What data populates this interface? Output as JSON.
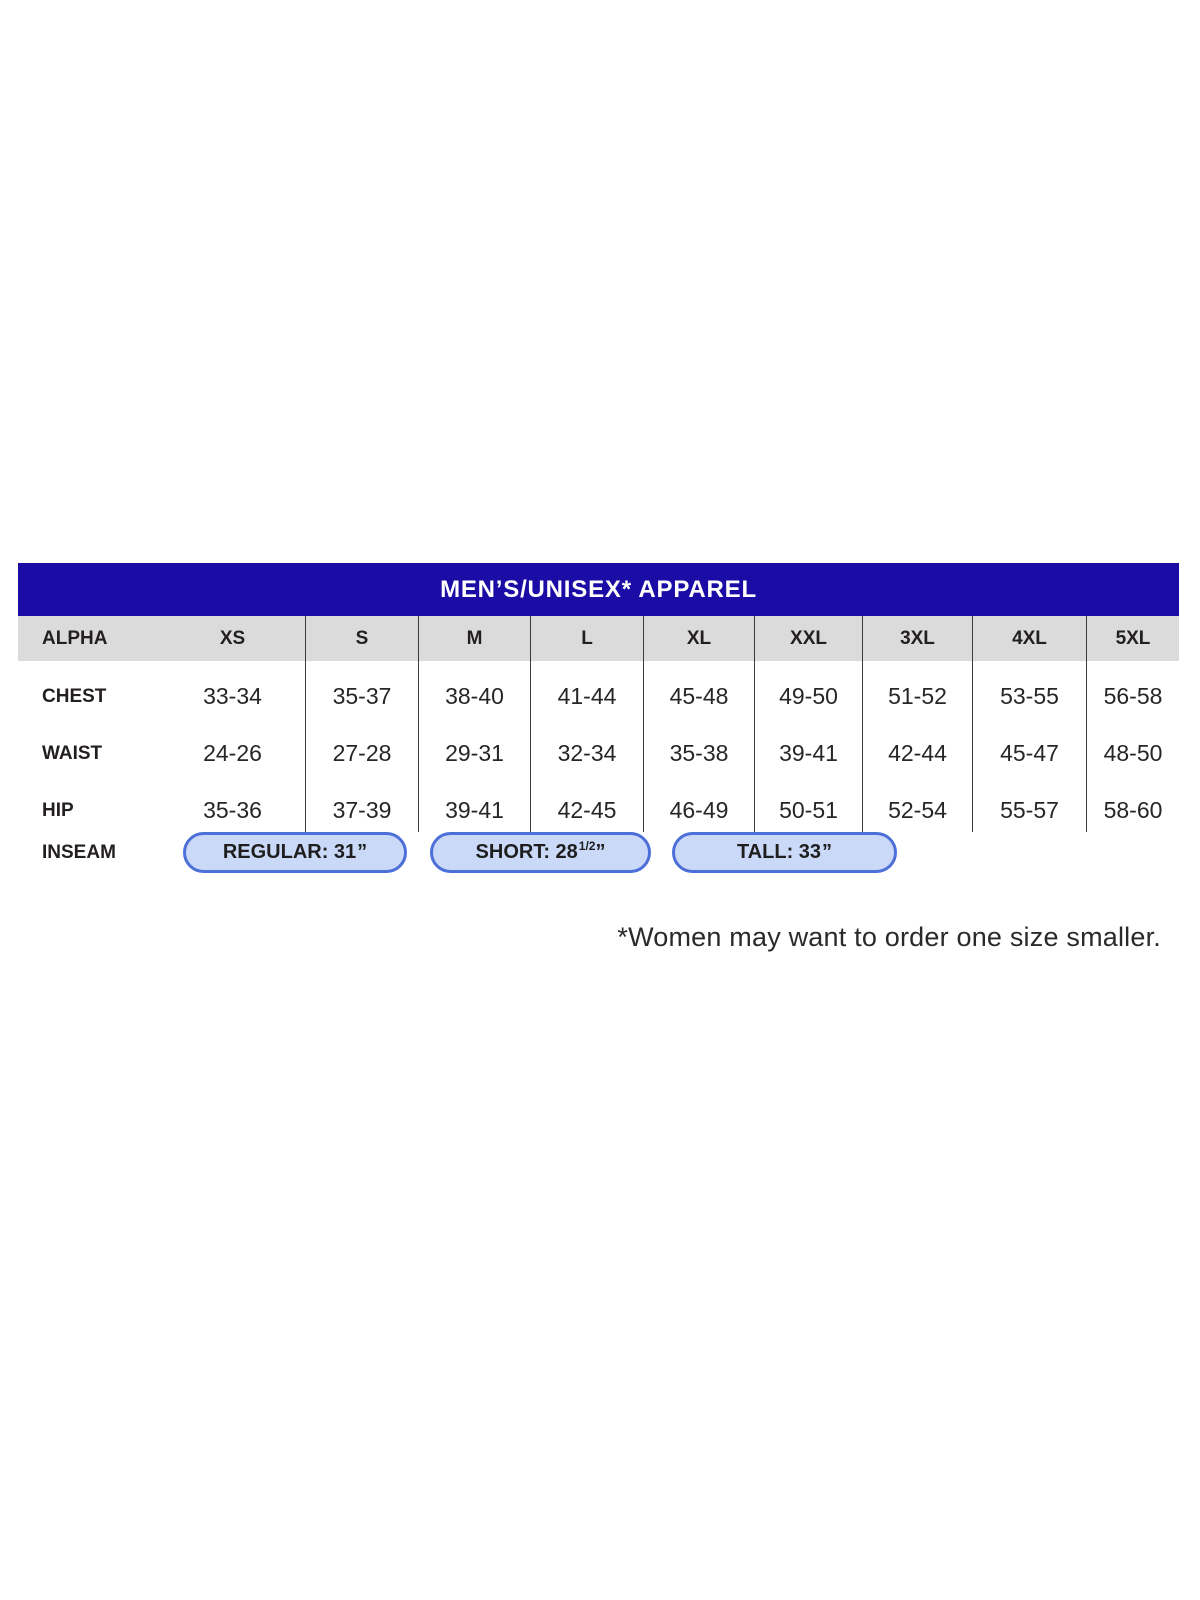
{
  "chart_data": {
    "type": "table",
    "title": "MEN’S/UNISEX* APPAREL",
    "columns": [
      "ALPHA",
      "XS",
      "S",
      "M",
      "L",
      "XL",
      "XXL",
      "3XL",
      "4XL",
      "5XL"
    ],
    "rows": [
      [
        "CHEST",
        "33-34",
        "35-37",
        "38-40",
        "41-44",
        "45-48",
        "49-50",
        "51-52",
        "53-55",
        "56-58"
      ],
      [
        "WAIST",
        "24-26",
        "27-28",
        "29-31",
        "32-34",
        "35-38",
        "39-41",
        "42-44",
        "45-47",
        "48-50"
      ],
      [
        "HIP",
        "35-36",
        "37-39",
        "39-41",
        "42-45",
        "46-49",
        "50-51",
        "52-54",
        "55-57",
        "58-60"
      ],
      [
        "INSEAM",
        "REGULAR: 31”",
        "SHORT: 28½”",
        "TALL: 33”"
      ]
    ],
    "footnote": "*Women may want to order one size smaller."
  },
  "table": {
    "title": "MEN’S/UNISEX* APPAREL",
    "header": {
      "label": "ALPHA",
      "sizes": [
        "XS",
        "S",
        "M",
        "L",
        "XL",
        "XXL",
        "3XL",
        "4XL",
        "5XL"
      ]
    },
    "rows": [
      {
        "label": "CHEST",
        "values": [
          "33-34",
          "35-37",
          "38-40",
          "41-44",
          "45-48",
          "49-50",
          "51-52",
          "53-55",
          "56-58"
        ]
      },
      {
        "label": "WAIST",
        "values": [
          "24-26",
          "27-28",
          "29-31",
          "32-34",
          "35-38",
          "39-41",
          "42-44",
          "45-47",
          "48-50"
        ]
      },
      {
        "label": "HIP",
        "values": [
          "35-36",
          "37-39",
          "39-41",
          "42-45",
          "46-49",
          "50-51",
          "52-54",
          "55-57",
          "58-60"
        ]
      }
    ],
    "inseam": {
      "label": "INSEAM",
      "options": [
        {
          "prefix": "REGULAR: 31",
          "sup": "",
          "suffix": "”"
        },
        {
          "prefix": "SHORT: 28",
          "sup": "1/2",
          "suffix": "”"
        },
        {
          "prefix": "TALL: 33",
          "sup": "",
          "suffix": "”"
        }
      ]
    }
  },
  "footnote": "*Women may want to order one size smaller.",
  "colors": {
    "title_bar_blue": "#1B0CA5",
    "header_row_gray": "#DBDBDB",
    "pill_fill": "#CAD9F7",
    "pill_border": "#4D6FD8",
    "divider": "#3D3D3D",
    "text": "#231F20"
  }
}
